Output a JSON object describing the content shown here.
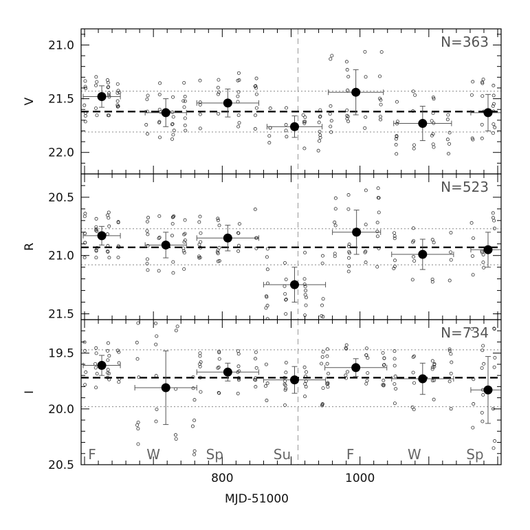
{
  "chart_data": [
    {
      "type": "scatter",
      "panel": "V",
      "ylabel": "V",
      "ylim": [
        22.2,
        20.85
      ],
      "yticks": [
        "21.0",
        "21.5",
        "22.0"
      ],
      "ytick_values": [
        21.0,
        21.5,
        22.0
      ],
      "annotation": "N=363",
      "mean": 21.62,
      "band": [
        21.43,
        21.81
      ],
      "seasons": [
        {
          "x": 625,
          "y": 21.48,
          "xerr": 27,
          "yerr": 0.1
        },
        {
          "x": 718,
          "y": 21.63,
          "xerr": 30,
          "yerr": 0.13
        },
        {
          "x": 808,
          "y": 21.54,
          "xerr": 45,
          "yerr": 0.13
        },
        {
          "x": 905,
          "y": 21.76,
          "xerr": 40,
          "yerr": 0.1
        },
        {
          "x": 994,
          "y": 21.44,
          "xerr": 40,
          "yerr": 0.21
        },
        {
          "x": 1091,
          "y": 21.73,
          "xerr": 42,
          "yerr": 0.16
        },
        {
          "x": 1186,
          "y": 21.63,
          "xerr": 25,
          "yerr": 0.17
        }
      ]
    },
    {
      "type": "scatter",
      "panel": "R",
      "ylabel": "R",
      "ylim": [
        21.55,
        20.3
      ],
      "yticks": [
        "20.5",
        "21.0",
        "21.5"
      ],
      "ytick_values": [
        20.5,
        21.0,
        21.5
      ],
      "annotation": "N=523",
      "mean": 20.93,
      "band": [
        20.77,
        21.08
      ],
      "seasons": [
        {
          "x": 625,
          "y": 20.83,
          "xerr": 27,
          "yerr": 0.08
        },
        {
          "x": 718,
          "y": 20.91,
          "xerr": 30,
          "yerr": 0.11
        },
        {
          "x": 808,
          "y": 20.85,
          "xerr": 45,
          "yerr": 0.11
        },
        {
          "x": 905,
          "y": 21.25,
          "xerr": 45,
          "yerr": 0.15
        },
        {
          "x": 995,
          "y": 20.8,
          "xerr": 35,
          "yerr": 0.19
        },
        {
          "x": 1091,
          "y": 20.99,
          "xerr": 45,
          "yerr": 0.13
        },
        {
          "x": 1186,
          "y": 20.95,
          "xerr": 25,
          "yerr": 0.15
        }
      ]
    },
    {
      "type": "scatter",
      "panel": "I",
      "ylabel": "I",
      "ylim": [
        20.5,
        19.2
      ],
      "yticks": [
        "19.5",
        "20.0",
        "20.5"
      ],
      "ytick_values": [
        19.5,
        20.0,
        20.5
      ],
      "annotation": "N=734",
      "mean": 19.72,
      "band": [
        19.47,
        19.98
      ],
      "xlabel": "MJD-51000",
      "xlim": [
        595,
        1205
      ],
      "xticks": [
        "800",
        "1000"
      ],
      "xtick_values": [
        800,
        1000
      ],
      "season_labels": [
        {
          "x": 611,
          "text": "F"
        },
        {
          "x": 700,
          "text": "W"
        },
        {
          "x": 789,
          "text": "Sp"
        },
        {
          "x": 887,
          "text": "Su"
        },
        {
          "x": 986,
          "text": "F"
        },
        {
          "x": 1079,
          "text": "W"
        },
        {
          "x": 1167,
          "text": "Sp"
        }
      ],
      "seasons": [
        {
          "x": 625,
          "y": 19.61,
          "xerr": 27,
          "yerr": 0.09
        },
        {
          "x": 718,
          "y": 19.81,
          "xerr": 45,
          "yerr": 0.33
        },
        {
          "x": 808,
          "y": 19.67,
          "xerr": 45,
          "yerr": 0.08
        },
        {
          "x": 905,
          "y": 19.74,
          "xerr": 45,
          "yerr": 0.12
        },
        {
          "x": 994,
          "y": 19.63,
          "xerr": 45,
          "yerr": 0.08
        },
        {
          "x": 1091,
          "y": 19.73,
          "xerr": 45,
          "yerr": 0.14
        },
        {
          "x": 1186,
          "y": 19.83,
          "xerr": 25,
          "yerr": 0.3
        }
      ]
    }
  ],
  "vertical_marker_x": 910
}
